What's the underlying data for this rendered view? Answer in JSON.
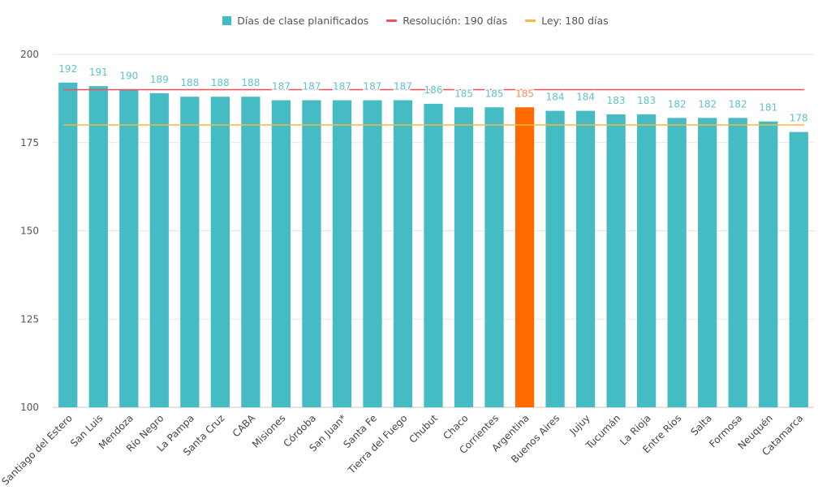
{
  "legend": {
    "bars_label": "Días de clase planificados",
    "line1_label": "Resolución: 190 días",
    "line2_label": "Ley: 180 días"
  },
  "colors": {
    "bar": "#45BCC4",
    "highlight": "#FF6A00",
    "line_resolucion": "#F0505A",
    "line_ley": "#F4B942",
    "label": "#62C2CB",
    "highlight_label": "#FF8A55"
  },
  "chart_data": {
    "type": "bar",
    "categories": [
      "Santiago del Estero",
      "San Luis",
      "Mendoza",
      "Río Negro",
      "La Pampa",
      "Santa Cruz",
      "CABA",
      "Misiones",
      "Córdoba",
      "San Juan*",
      "Santa Fe",
      "Tierra del Fuego",
      "Chubut",
      "Chaco",
      "Corrientes",
      "Argentina",
      "Buenos Aires",
      "Jujuy",
      "Tucumán",
      "La Rioja",
      "Entre Ríos",
      "Salta",
      "Formosa",
      "Neuquén",
      "Catamarca"
    ],
    "values": [
      192,
      191,
      190,
      189,
      188,
      188,
      188,
      187,
      187,
      187,
      187,
      187,
      186,
      185,
      185,
      185,
      184,
      184,
      183,
      183,
      182,
      182,
      182,
      181,
      178
    ],
    "highlight_category": "Argentina",
    "reference_lines": [
      {
        "name": "Resolución: 190 días",
        "value": 190
      },
      {
        "name": "Ley: 180 días",
        "value": 180
      }
    ],
    "ylim": [
      100,
      200
    ],
    "yticks": [
      100,
      125,
      150,
      175,
      200
    ],
    "grid": true,
    "legend_position": "top-center"
  }
}
